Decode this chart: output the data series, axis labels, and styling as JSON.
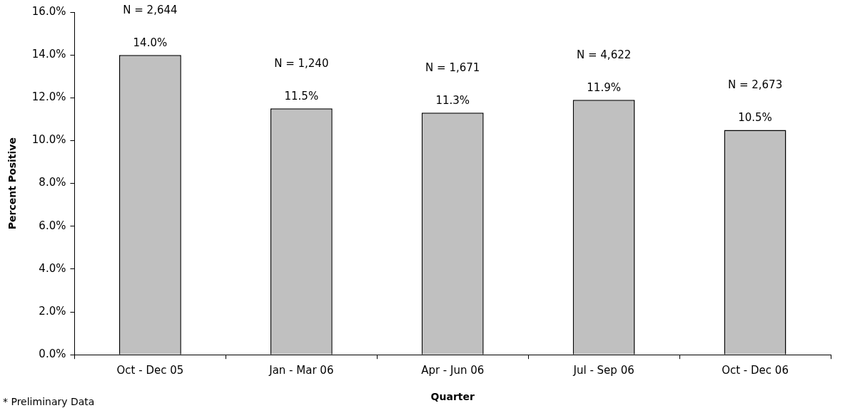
{
  "chart_data": {
    "type": "bar",
    "xlabel": "Quarter",
    "ylabel": "Percent Positive",
    "categories": [
      "Oct - Dec 05",
      "Jan - Mar 06",
      "Apr - Jun 06",
      "Jul - Sep 06",
      "Oct - Dec 06"
    ],
    "values": [
      14.0,
      11.5,
      11.3,
      11.9,
      10.5
    ],
    "color": "#c0c0c0",
    "value_labels": [
      "14.0%",
      "11.5%",
      "11.3%",
      "11.9%",
      "10.5%"
    ],
    "ylim": [
      0,
      16
    ],
    "yticks": [
      {
        "value": 0,
        "label": "0.0%"
      },
      {
        "value": 2,
        "label": "2.0%"
      },
      {
        "value": 4,
        "label": "4.0%"
      },
      {
        "value": 6,
        "label": "6.0%"
      },
      {
        "value": 8,
        "label": "8.0%"
      },
      {
        "value": 10,
        "label": "10.0%"
      },
      {
        "value": 12,
        "label": "12.0%"
      },
      {
        "value": 14,
        "label": "14.0%"
      },
      {
        "value": 16,
        "label": "16.0%"
      }
    ],
    "grid": false,
    "legend": false,
    "annotations": [
      "N = 2,644",
      "N = 1,240",
      "N = 1,671",
      "N = 4,622",
      "N = 2,673",
      "* Preliminary Data"
    ]
  }
}
